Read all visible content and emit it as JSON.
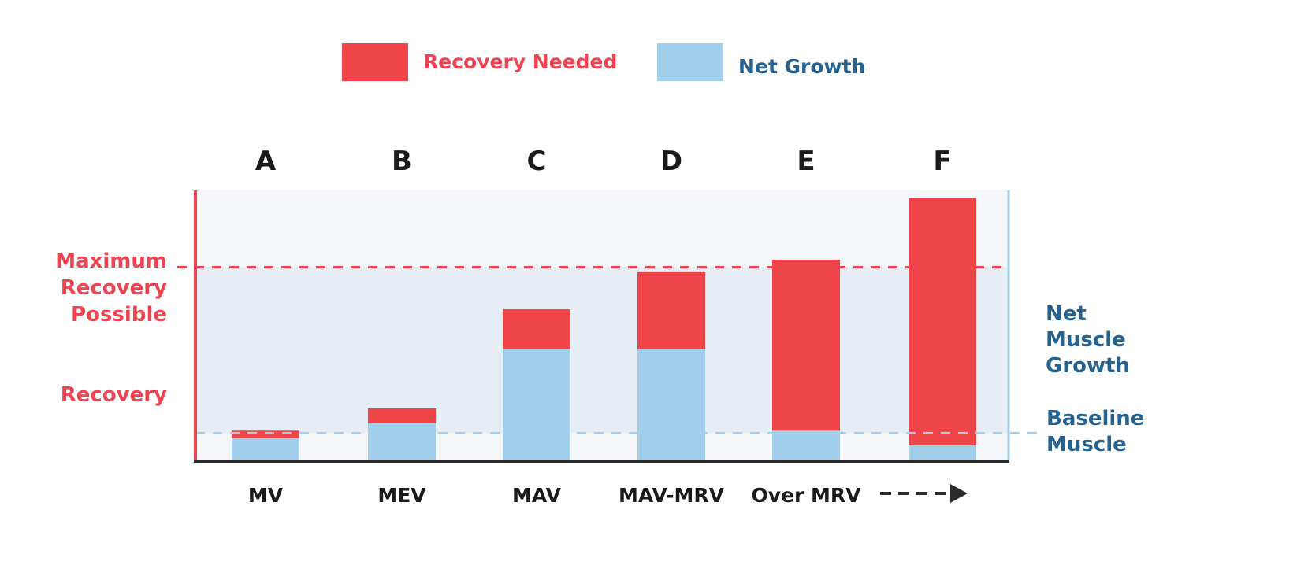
{
  "chart_data": {
    "type": "bar",
    "stacked": true,
    "categories": [
      "A",
      "B",
      "C",
      "D",
      "E",
      "F"
    ],
    "x_labels": [
      "MV",
      "MEV",
      "MAV",
      "MAV-MRV",
      "Over MRV",
      ""
    ],
    "series": [
      {
        "name": "Net Growth",
        "color": "#a2cfeb",
        "values": [
          0.9,
          1.5,
          4.5,
          4.5,
          1.2,
          0.6
        ]
      },
      {
        "name": "Recovery Needed",
        "color": "#ef4549",
        "values": [
          0.3,
          0.6,
          1.6,
          3.1,
          6.9,
          10.0
        ]
      }
    ],
    "legend": [
      {
        "label": "Recovery Needed",
        "color": "#ef4549",
        "text_color": "#ee4451"
      },
      {
        "label": "Net Growth",
        "color": "#a2cfeb",
        "text_color": "#25628f"
      }
    ],
    "legend_position": "top-center",
    "ylim": [
      0,
      10.9
    ],
    "reference_lines": [
      {
        "name": "max-recovery-line",
        "value": 7.8,
        "color": "#ee4451"
      },
      {
        "name": "baseline-muscle-line",
        "value": 1.1,
        "color": "#a2cfeb"
      }
    ],
    "left_labels": {
      "max_recovery": [
        "Maximum",
        "Recovery",
        "Possible"
      ],
      "recovery": "Recovery",
      "color": "#ee4451"
    },
    "right_labels": {
      "net_muscle_growth": [
        "Net",
        "Muscle",
        "Growth"
      ],
      "baseline_muscle": [
        "Baseline",
        "Muscle"
      ],
      "color": "#25628f"
    },
    "arrow_icon": "dashed-right-arrow-icon",
    "colors": {
      "axis": "#2b2b2b",
      "left_axis": "#ee4451",
      "right_axis": "#a2cfeb",
      "band_light": "#f4f6f9",
      "band_shaded": "#e6edf4",
      "label_dark": "#1a1a1a"
    }
  }
}
